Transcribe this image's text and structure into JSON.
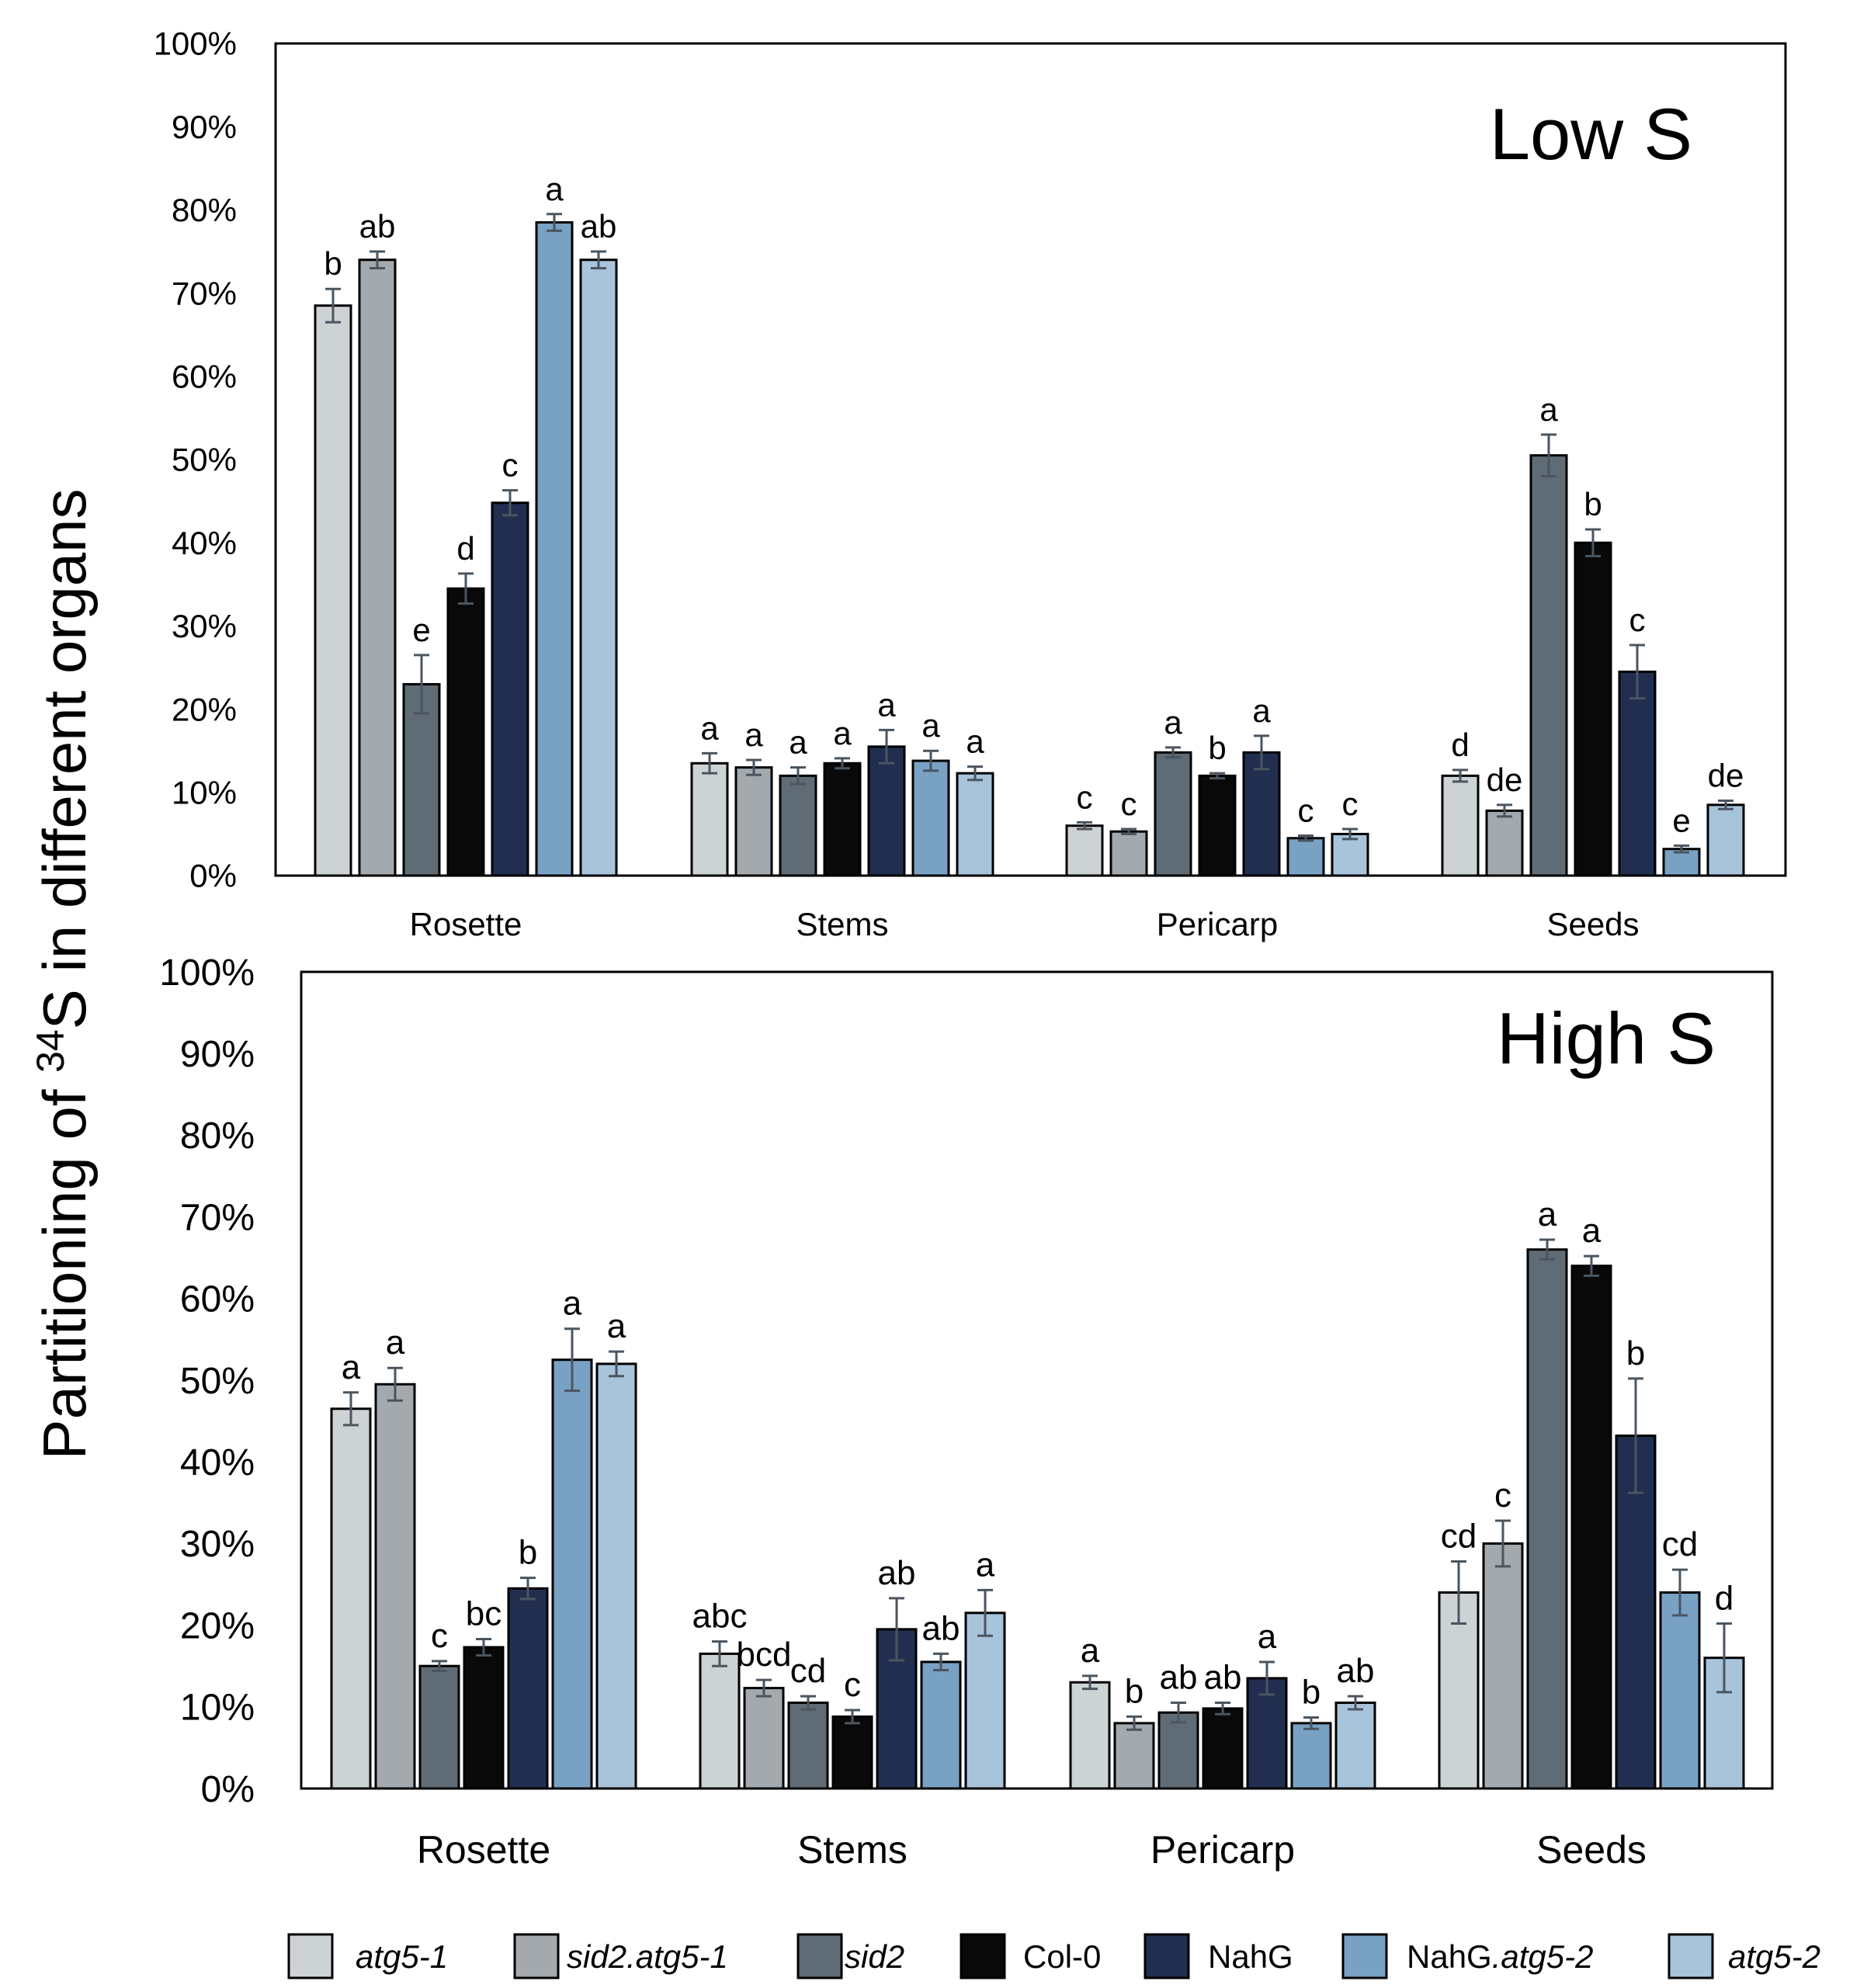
{
  "y_axis_label": {
    "prefix": "Partitioning of ",
    "superscript": "34",
    "suffix": "S in different organs"
  },
  "legend": [
    {
      "name": "atg5-1",
      "color": "#cdd2d4",
      "italic": true
    },
    {
      "name": "sid2.atg5-1",
      "color": "#a3a9ad",
      "italic": true
    },
    {
      "name": "sid2",
      "color": "#5f6c75",
      "italic": true
    },
    {
      "name": "Col-0",
      "color": "#090909",
      "italic": false
    },
    {
      "name": "NahG",
      "color": "#222e4f",
      "italic": false
    },
    {
      "name": "NahG.atg5-2",
      "color": "#79a1c4",
      "italic": false,
      "italic_suffix": ".atg5-2",
      "plain_prefix": "NahG"
    },
    {
      "name": "atg5-2",
      "color": "#a8c4db",
      "italic": true
    }
  ],
  "chart_data": [
    {
      "type": "bar",
      "title": "Low S",
      "ylabel": "Partitioning of 34S in different organs",
      "ylim": [
        0,
        100
      ],
      "yticks": [
        "0%",
        "10%",
        "20%",
        "30%",
        "40%",
        "50%",
        "60%",
        "70%",
        "80%",
        "90%",
        "100%"
      ],
      "categories": [
        "Rosette",
        "Stems",
        "Pericarp",
        "Seeds"
      ],
      "series": [
        {
          "name": "atg5-1",
          "values": [
            68.5,
            13.5,
            6.0,
            12.0
          ],
          "errors": [
            2.0,
            1.2,
            0.4,
            0.7
          ],
          "labels": [
            "b",
            "a",
            "c",
            "d"
          ]
        },
        {
          "name": "sid2.atg5-1",
          "values": [
            74.0,
            13.0,
            5.3,
            7.8
          ],
          "errors": [
            1.0,
            0.9,
            0.3,
            0.7
          ],
          "labels": [
            "ab",
            "a",
            "c",
            "de"
          ]
        },
        {
          "name": "sid2",
          "values": [
            23.0,
            12.0,
            14.8,
            50.5
          ],
          "errors": [
            3.5,
            1.0,
            0.6,
            2.5
          ],
          "labels": [
            "e",
            "a",
            "a",
            "a"
          ]
        },
        {
          "name": "Col-0",
          "values": [
            34.5,
            13.5,
            12.0,
            40.0
          ],
          "errors": [
            1.8,
            0.6,
            0.3,
            1.6
          ],
          "labels": [
            "d",
            "a",
            "b",
            "b"
          ]
        },
        {
          "name": "NahG",
          "values": [
            44.8,
            15.5,
            14.8,
            24.5
          ],
          "errors": [
            1.5,
            2.0,
            2.0,
            3.2
          ],
          "labels": [
            "c",
            "a",
            "a",
            "c"
          ]
        },
        {
          "name": "NahG.atg5-2",
          "values": [
            78.5,
            13.8,
            4.5,
            3.2
          ],
          "errors": [
            1.0,
            1.2,
            0.3,
            0.4
          ],
          "labels": [
            "a",
            "a",
            "c",
            "e"
          ]
        },
        {
          "name": "atg5-2",
          "values": [
            74.0,
            12.3,
            5.0,
            8.5
          ],
          "errors": [
            1.0,
            0.8,
            0.6,
            0.5
          ],
          "labels": [
            "ab",
            "a",
            "c",
            "de"
          ]
        }
      ]
    },
    {
      "type": "bar",
      "title": "High S",
      "ylabel": "Partitioning of 34S in different organs",
      "ylim": [
        0,
        100
      ],
      "yticks": [
        "0%",
        "10%",
        "20%",
        "30%",
        "40%",
        "50%",
        "60%",
        "70%",
        "80%",
        "90%",
        "100%"
      ],
      "categories": [
        "Rosette",
        "Stems",
        "Pericarp",
        "Seeds"
      ],
      "series": [
        {
          "name": "atg5-1",
          "values": [
            46.5,
            16.5,
            13.0,
            24.0
          ],
          "errors": [
            2.0,
            1.5,
            0.8,
            3.8
          ],
          "labels": [
            "a",
            "abc",
            "a",
            "cd"
          ]
        },
        {
          "name": "sid2.atg5-1",
          "values": [
            49.5,
            12.3,
            8.0,
            30.0
          ],
          "errors": [
            2.0,
            1.0,
            0.8,
            2.8
          ],
          "labels": [
            "a",
            "bcd",
            "b",
            "c"
          ]
        },
        {
          "name": "sid2",
          "values": [
            15.0,
            10.5,
            9.3,
            66.0
          ],
          "errors": [
            0.6,
            0.8,
            1.2,
            1.2
          ],
          "labels": [
            "c",
            "cd",
            "ab",
            "a"
          ]
        },
        {
          "name": "Col-0",
          "values": [
            17.3,
            8.8,
            9.8,
            64.0
          ],
          "errors": [
            1.0,
            0.8,
            0.7,
            1.2
          ],
          "labels": [
            "bc",
            "c",
            "ab",
            "a"
          ]
        },
        {
          "name": "NahG",
          "values": [
            24.5,
            19.5,
            13.5,
            43.2
          ],
          "errors": [
            1.3,
            3.8,
            2.0,
            7.0
          ],
          "labels": [
            "b",
            "ab",
            "a",
            "b"
          ]
        },
        {
          "name": "NahG.atg5-2",
          "values": [
            52.5,
            15.5,
            8.0,
            24.0
          ],
          "errors": [
            3.8,
            1.0,
            0.7,
            2.8
          ],
          "labels": [
            "a",
            "ab",
            "b",
            "cd"
          ]
        },
        {
          "name": "atg5-2",
          "values": [
            52.0,
            21.5,
            10.5,
            16.0
          ],
          "errors": [
            1.5,
            2.8,
            0.8,
            4.2
          ],
          "labels": [
            "a",
            "a",
            "ab",
            "d"
          ]
        }
      ]
    }
  ]
}
